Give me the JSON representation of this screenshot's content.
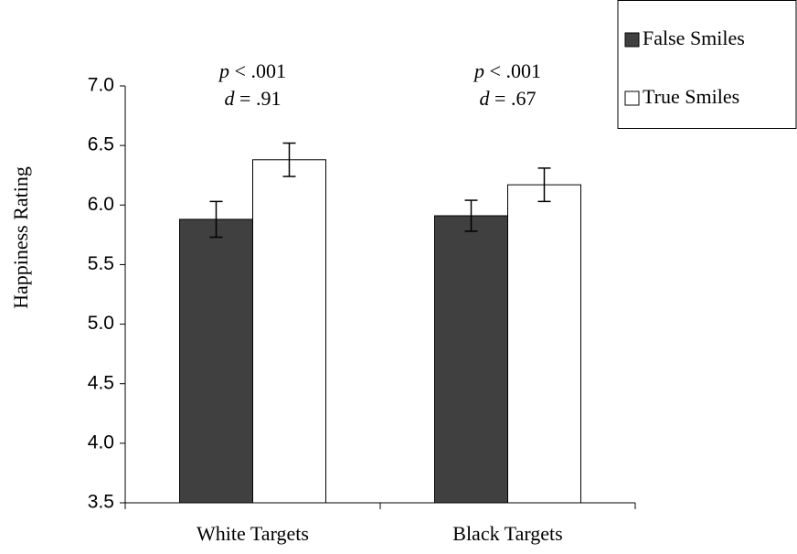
{
  "chart_data": {
    "type": "bar",
    "y_label": "Happiness  Rating",
    "categories": [
      "White Targets",
      "Black Targets"
    ],
    "series": [
      {
        "name": "False Smiles",
        "color": "#404040",
        "values": [
          5.88,
          5.91
        ],
        "errors": [
          0.15,
          0.13
        ]
      },
      {
        "name": "True Smiles",
        "color": "#ffffff",
        "values": [
          6.38,
          6.17
        ],
        "errors": [
          0.14,
          0.14
        ]
      }
    ],
    "annotations": [
      {
        "p": "p",
        "p_text": " < .001",
        "d": "d",
        "d_text": " = .91"
      },
      {
        "p": "p",
        "p_text": " < .001",
        "d": "d",
        "d_text": " = .67"
      }
    ],
    "ylim": [
      3.5,
      7.0
    ],
    "yticks": [
      3.5,
      {
        "value": 4.0,
        "label": "4.0"
      },
      4.5,
      {
        "value": 5.0,
        "label": "5.0"
      },
      5.5,
      {
        "value": 6.0,
        "label": "6.0"
      },
      6.5,
      {
        "value": 7.0,
        "label": "7.0"
      }
    ],
    "legend": "top-right"
  }
}
